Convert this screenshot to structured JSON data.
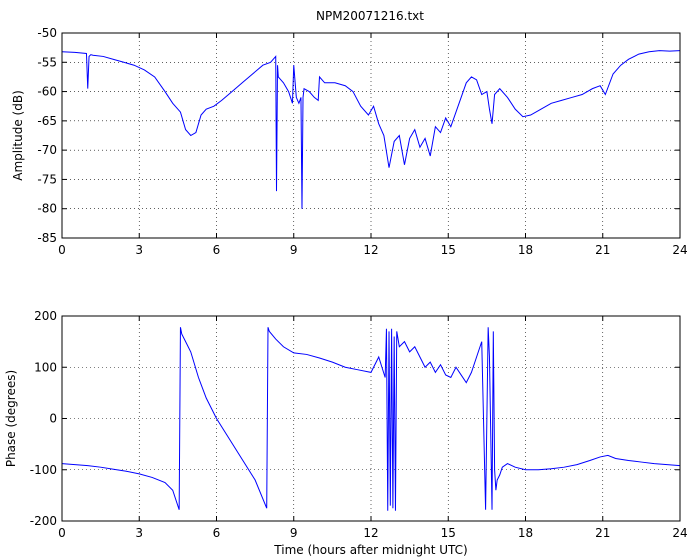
{
  "figure": {
    "title": "NPM20071216.txt"
  },
  "chart_data": [
    {
      "type": "line",
      "title": "NPM20071216.txt",
      "xlabel": "",
      "ylabel": "Amplitude (dB)",
      "xlim": [
        0,
        24
      ],
      "ylim": [
        -85,
        -50
      ],
      "xticks": [
        0,
        3,
        6,
        9,
        12,
        15,
        18,
        21,
        24
      ],
      "yticks": [
        -85,
        -80,
        -75,
        -70,
        -65,
        -60,
        -55,
        -50
      ],
      "xtick_labels": [
        "0",
        "3",
        "6",
        "9",
        "12",
        "15",
        "18",
        "21",
        "24"
      ],
      "ytick_labels": [
        "-85",
        "-80",
        "-75",
        "-70",
        "-65",
        "-60",
        "-55",
        "-50"
      ],
      "grid": true,
      "line_color": "#0000ff",
      "series": [
        {
          "x": [
            0,
            0.5,
            0.95,
            1.0,
            1.05,
            1.12,
            1.2,
            1.6,
            2.0,
            2.4,
            2.8,
            3.2,
            3.6,
            4.0,
            4.3,
            4.6,
            4.8,
            5.0,
            5.2,
            5.4,
            5.6,
            5.9,
            6.2,
            6.6,
            7.0,
            7.4,
            7.8,
            8.1,
            8.3,
            8.33,
            8.37,
            8.4,
            8.6,
            8.8,
            8.95,
            9.0,
            9.1,
            9.2,
            9.28,
            9.32,
            9.36,
            9.4,
            9.6,
            9.8,
            9.95,
            10.0,
            10.2,
            10.6,
            11.0,
            11.3,
            11.6,
            11.9,
            12.1,
            12.3,
            12.5,
            12.7,
            12.9,
            13.1,
            13.3,
            13.5,
            13.7,
            13.9,
            14.1,
            14.3,
            14.5,
            14.7,
            14.9,
            15.1,
            15.3,
            15.5,
            15.7,
            15.9,
            16.1,
            16.3,
            16.5,
            16.6,
            16.7,
            16.8,
            17.0,
            17.3,
            17.6,
            17.9,
            18.2,
            18.6,
            19.0,
            19.4,
            19.8,
            20.2,
            20.6,
            20.9,
            21.1,
            21.4,
            21.7,
            22.0,
            22.4,
            22.8,
            23.2,
            23.6,
            24.0
          ],
          "values": [
            -53.2,
            -53.3,
            -53.5,
            -59.5,
            -54.0,
            -53.7,
            -53.8,
            -54.0,
            -54.5,
            -55.0,
            -55.5,
            -56.3,
            -57.5,
            -60.0,
            -62.0,
            -63.5,
            -66.5,
            -67.5,
            -67.0,
            -64.0,
            -63.0,
            -62.5,
            -61.5,
            -60.0,
            -58.5,
            -57.0,
            -55.5,
            -55.0,
            -54.0,
            -77.0,
            -55.5,
            -57.5,
            -58.5,
            -60.0,
            -62.0,
            -55.5,
            -61.0,
            -62.0,
            -61.0,
            -80.0,
            -61.0,
            -59.5,
            -60.0,
            -61.0,
            -61.5,
            -57.5,
            -58.5,
            -58.5,
            -59.0,
            -60.0,
            -62.5,
            -64.0,
            -62.5,
            -65.5,
            -67.5,
            -73.0,
            -68.5,
            -67.5,
            -72.5,
            -68.0,
            -66.5,
            -69.5,
            -68.0,
            -71.0,
            -66.0,
            -67.0,
            -64.5,
            -66.0,
            -63.5,
            -61.0,
            -58.5,
            -57.5,
            -58.0,
            -60.5,
            -60.0,
            -63.0,
            -65.5,
            -60.5,
            -59.5,
            -61.0,
            -63.0,
            -64.3,
            -64.0,
            -63.0,
            -62.0,
            -61.5,
            -61.0,
            -60.5,
            -59.5,
            -59.0,
            -60.5,
            -57.0,
            -55.5,
            -54.5,
            -53.6,
            -53.2,
            -53.0,
            -53.1,
            -53.0
          ]
        }
      ]
    },
    {
      "type": "line",
      "title": "",
      "xlabel": "Time (hours after midnight UTC)",
      "ylabel": "Phase (degrees)",
      "xlim": [
        0,
        24
      ],
      "ylim": [
        -200,
        200
      ],
      "xticks": [
        0,
        3,
        6,
        9,
        12,
        15,
        18,
        21,
        24
      ],
      "yticks": [
        -200,
        -100,
        0,
        100,
        200
      ],
      "xtick_labels": [
        "0",
        "3",
        "6",
        "9",
        "12",
        "15",
        "18",
        "21",
        "24"
      ],
      "ytick_labels": [
        "-200",
        "-100",
        "0",
        "100",
        "200"
      ],
      "grid": true,
      "line_color": "#0000ff",
      "series": [
        {
          "x": [
            0,
            0.5,
            1.0,
            1.5,
            2.0,
            2.5,
            3.0,
            3.5,
            4.0,
            4.3,
            4.55,
            4.6,
            4.65,
            4.8,
            5.0,
            5.3,
            5.6,
            6.0,
            6.5,
            7.0,
            7.5,
            7.95,
            8.0,
            8.05,
            8.3,
            8.6,
            9.0,
            9.5,
            10.0,
            10.5,
            11.0,
            11.5,
            12.0,
            12.3,
            12.55,
            12.6,
            12.65,
            12.7,
            12.75,
            12.8,
            12.85,
            12.9,
            12.95,
            13.0,
            13.1,
            13.3,
            13.5,
            13.7,
            13.9,
            14.1,
            14.3,
            14.5,
            14.7,
            14.9,
            15.1,
            15.3,
            15.5,
            15.7,
            15.9,
            16.1,
            16.3,
            16.45,
            16.55,
            16.6,
            16.7,
            16.75,
            16.8,
            16.85,
            16.9,
            17.0,
            17.1,
            17.3,
            17.6,
            18.0,
            18.5,
            19.0,
            19.5,
            20.0,
            20.5,
            20.9,
            21.2,
            21.5,
            22.0,
            22.5,
            23.0,
            23.5,
            24.0
          ],
          "values": [
            -88,
            -90,
            -92,
            -95,
            -99,
            -103,
            -108,
            -115,
            -125,
            -140,
            -178,
            178,
            165,
            150,
            130,
            80,
            40,
            0,
            -40,
            -80,
            -120,
            -175,
            178,
            170,
            155,
            140,
            128,
            125,
            118,
            110,
            100,
            95,
            90,
            120,
            80,
            175,
            -180,
            170,
            -170,
            175,
            -175,
            160,
            -180,
            170,
            140,
            150,
            130,
            140,
            120,
            100,
            110,
            90,
            105,
            85,
            80,
            100,
            85,
            70,
            90,
            120,
            150,
            -178,
            178,
            120,
            -178,
            170,
            -100,
            -140,
            -120,
            -110,
            -95,
            -88,
            -95,
            -100,
            -100,
            -98,
            -95,
            -90,
            -82,
            -75,
            -72,
            -78,
            -82,
            -85,
            -88,
            -90,
            -92
          ]
        }
      ]
    }
  ]
}
